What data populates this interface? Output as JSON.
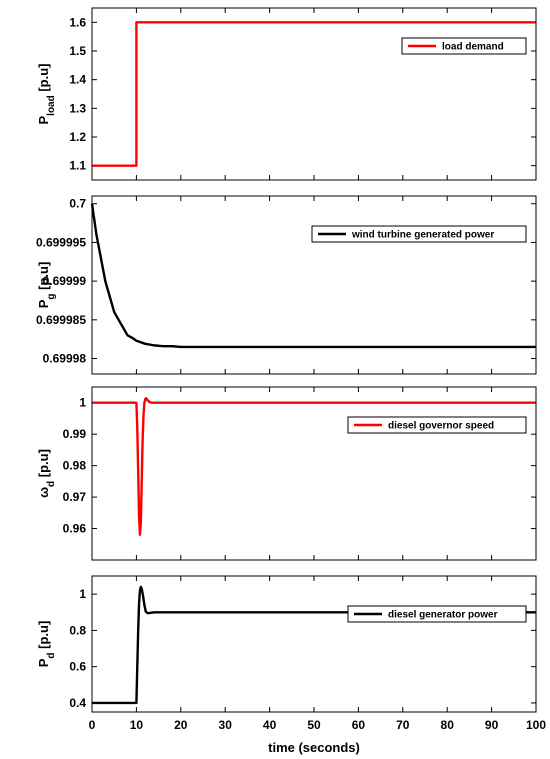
{
  "chart_data": [
    {
      "type": "line",
      "ylabel": "P",
      "ylabel_sub": "load",
      "ylabel_unit": " [p.u]",
      "xlim": [
        0,
        100
      ],
      "ylim": [
        1.05,
        1.65
      ],
      "yticks": [
        1.1,
        1.2,
        1.3,
        1.4,
        1.5,
        1.6
      ],
      "ytick_labels": [
        "1.1",
        "1.2",
        "1.3",
        "1.4",
        "1.5",
        "1.6"
      ],
      "legend": "top-right",
      "series": [
        {
          "name": "load demand",
          "color": "#ff0000",
          "x": [
            0,
            10,
            10,
            100
          ],
          "y": [
            1.1,
            1.1,
            1.6,
            1.6
          ]
        }
      ]
    },
    {
      "type": "line",
      "ylabel": "P",
      "ylabel_sub": "g",
      "ylabel_unit": " [p.u]",
      "xlim": [
        0,
        100
      ],
      "ylim": [
        0.699978,
        0.700001
      ],
      "yticks": [
        0.69998,
        0.699985,
        0.69999,
        0.699995,
        0.7
      ],
      "ytick_labels": [
        "0.69998",
        "0.699985",
        "0.69999",
        "0.699995",
        "0.7"
      ],
      "legend": "top-right",
      "series": [
        {
          "name": "wind turbine generated power",
          "color": "#000000",
          "x": [
            0,
            1,
            2,
            3,
            4,
            5,
            6,
            7,
            8,
            9,
            10,
            12,
            14,
            16,
            18,
            20,
            25,
            30,
            40,
            50,
            60,
            70,
            80,
            90,
            100
          ],
          "y": [
            0.7,
            0.699996,
            0.699993,
            0.69999,
            0.699988,
            0.699986,
            0.699985,
            0.699984,
            0.699983,
            0.6999827,
            0.6999823,
            0.6999819,
            0.6999817,
            0.6999816,
            0.6999816,
            0.6999815,
            0.6999815,
            0.6999815,
            0.6999815,
            0.6999815,
            0.6999815,
            0.6999815,
            0.6999815,
            0.6999815,
            0.6999815
          ]
        }
      ]
    },
    {
      "type": "line",
      "ylabel": "ω",
      "ylabel_sub": "d",
      "ylabel_unit": " [p.u]",
      "xlim": [
        0,
        100
      ],
      "ylim": [
        0.95,
        1.005
      ],
      "yticks": [
        0.96,
        0.97,
        0.98,
        0.99,
        1
      ],
      "ytick_labels": [
        "0.96",
        "0.97",
        "0.98",
        "0.99",
        "1"
      ],
      "legend": "top-right",
      "series": [
        {
          "name": "diesel governor speed",
          "color": "#ff0000",
          "x": [
            0,
            10,
            10.2,
            10.4,
            10.6,
            10.8,
            11.0,
            11.2,
            11.4,
            11.6,
            11.8,
            12.0,
            12.2,
            12.5,
            13.0,
            13.5,
            14.0,
            100
          ],
          "y": [
            1,
            1,
            0.992,
            0.978,
            0.964,
            0.958,
            0.962,
            0.975,
            0.988,
            0.996,
            1.0,
            1.0012,
            1.0014,
            1.0008,
            1.0002,
            1.0,
            1.0,
            1.0
          ]
        }
      ]
    },
    {
      "type": "line",
      "ylabel": "P",
      "ylabel_sub": "d",
      "ylabel_unit": " [p.u]",
      "xlim": [
        0,
        100
      ],
      "ylim": [
        0.35,
        1.1
      ],
      "yticks": [
        0.4,
        0.6,
        0.8,
        1
      ],
      "ytick_labels": [
        "0.4",
        "0.6",
        "0.8",
        "1"
      ],
      "xticks": [
        0,
        10,
        20,
        30,
        40,
        50,
        60,
        70,
        80,
        90,
        100
      ],
      "xtick_labels": [
        "0",
        "10",
        "20",
        "30",
        "40",
        "50",
        "60",
        "70",
        "80",
        "90",
        "100"
      ],
      "xlabel": "time (seconds)",
      "legend": "top-right",
      "series": [
        {
          "name": "diesel generator power",
          "color": "#000000",
          "x": [
            0,
            10,
            10.2,
            10.4,
            10.6,
            10.8,
            11.0,
            11.2,
            11.5,
            11.8,
            12.1,
            12.5,
            13.0,
            14.0,
            15.0,
            100
          ],
          "y": [
            0.4,
            0.4,
            0.6,
            0.8,
            0.95,
            1.02,
            1.04,
            1.03,
            0.99,
            0.94,
            0.905,
            0.895,
            0.896,
            0.9,
            0.9,
            0.9
          ]
        }
      ]
    }
  ]
}
